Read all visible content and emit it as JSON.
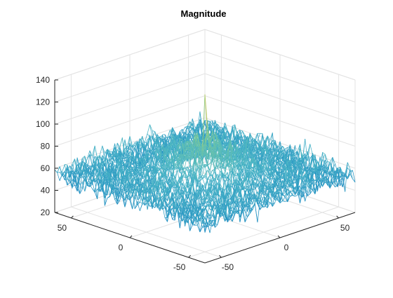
{
  "chart_data": {
    "type": "surface-mesh",
    "title": "Magnitude",
    "xlabel": "",
    "ylabel": "",
    "zlabel": "",
    "x_range": [
      -64,
      64
    ],
    "y_range": [
      -64,
      64
    ],
    "z_range": [
      20,
      140
    ],
    "x_ticks": [
      -50,
      0,
      50
    ],
    "y_ticks": [
      -50,
      0,
      50
    ],
    "z_ticks": [
      20,
      40,
      60,
      80,
      100,
      120,
      140
    ],
    "grid": true,
    "colormap": [
      "#0072bd",
      "#4cb6c7",
      "#8ccf8a",
      "#e6c54a"
    ],
    "surface": {
      "baseline_mean": 54,
      "noise_amplitude": 12,
      "center_hump_height": 40,
      "peak_location": [
        0,
        0
      ],
      "peak_value": 127
    }
  }
}
